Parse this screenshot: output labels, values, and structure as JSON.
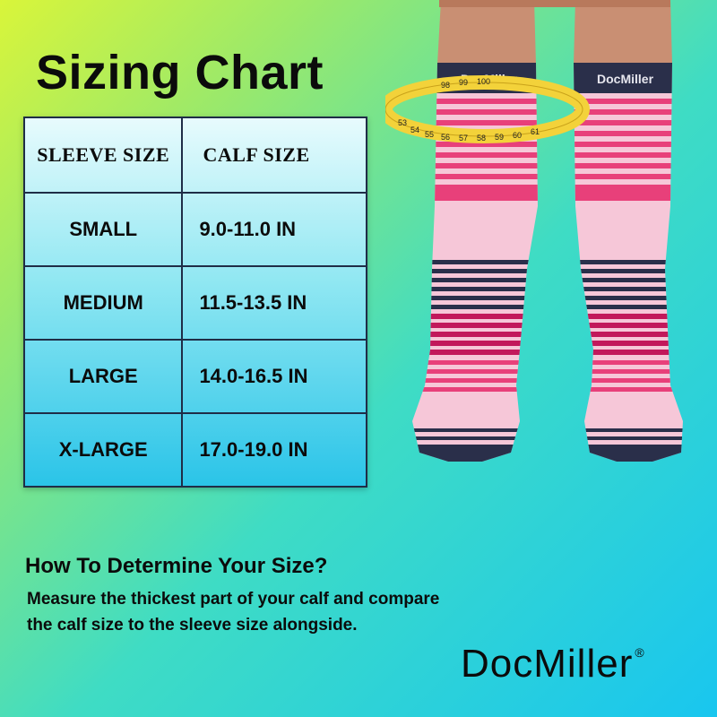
{
  "title": "Sizing Chart",
  "table": {
    "headers": {
      "sleeve": "SLEEVE SIZE",
      "calf": "CALF SIZE"
    },
    "rows": [
      {
        "size": "SMALL",
        "calf": "9.0-11.0 IN"
      },
      {
        "size": "MEDIUM",
        "calf": "11.5-13.5 IN"
      },
      {
        "size": "LARGE",
        "calf": "14.0-16.5 IN"
      },
      {
        "size": "X-LARGE",
        "calf": "17.0-19.0 IN"
      }
    ]
  },
  "product": {
    "cuff_brand": "DocMiller",
    "tape_numbers": [
      "53",
      "54",
      "55",
      "56",
      "57",
      "58",
      "59",
      "60",
      "61",
      "98",
      "99",
      "100"
    ],
    "colors": {
      "navy": "#2a2f4a",
      "pink": "#e8407a",
      "light_pink": "#f6c7d8",
      "tape": "#f3d23a"
    }
  },
  "howto": {
    "title": "How To Determine Your Size?",
    "line1": "Measure the thickest part of your calf and compare",
    "line2": "the calf size to the sleeve size alongside."
  },
  "brand": {
    "name": "DocMiller",
    "mark": "®"
  }
}
